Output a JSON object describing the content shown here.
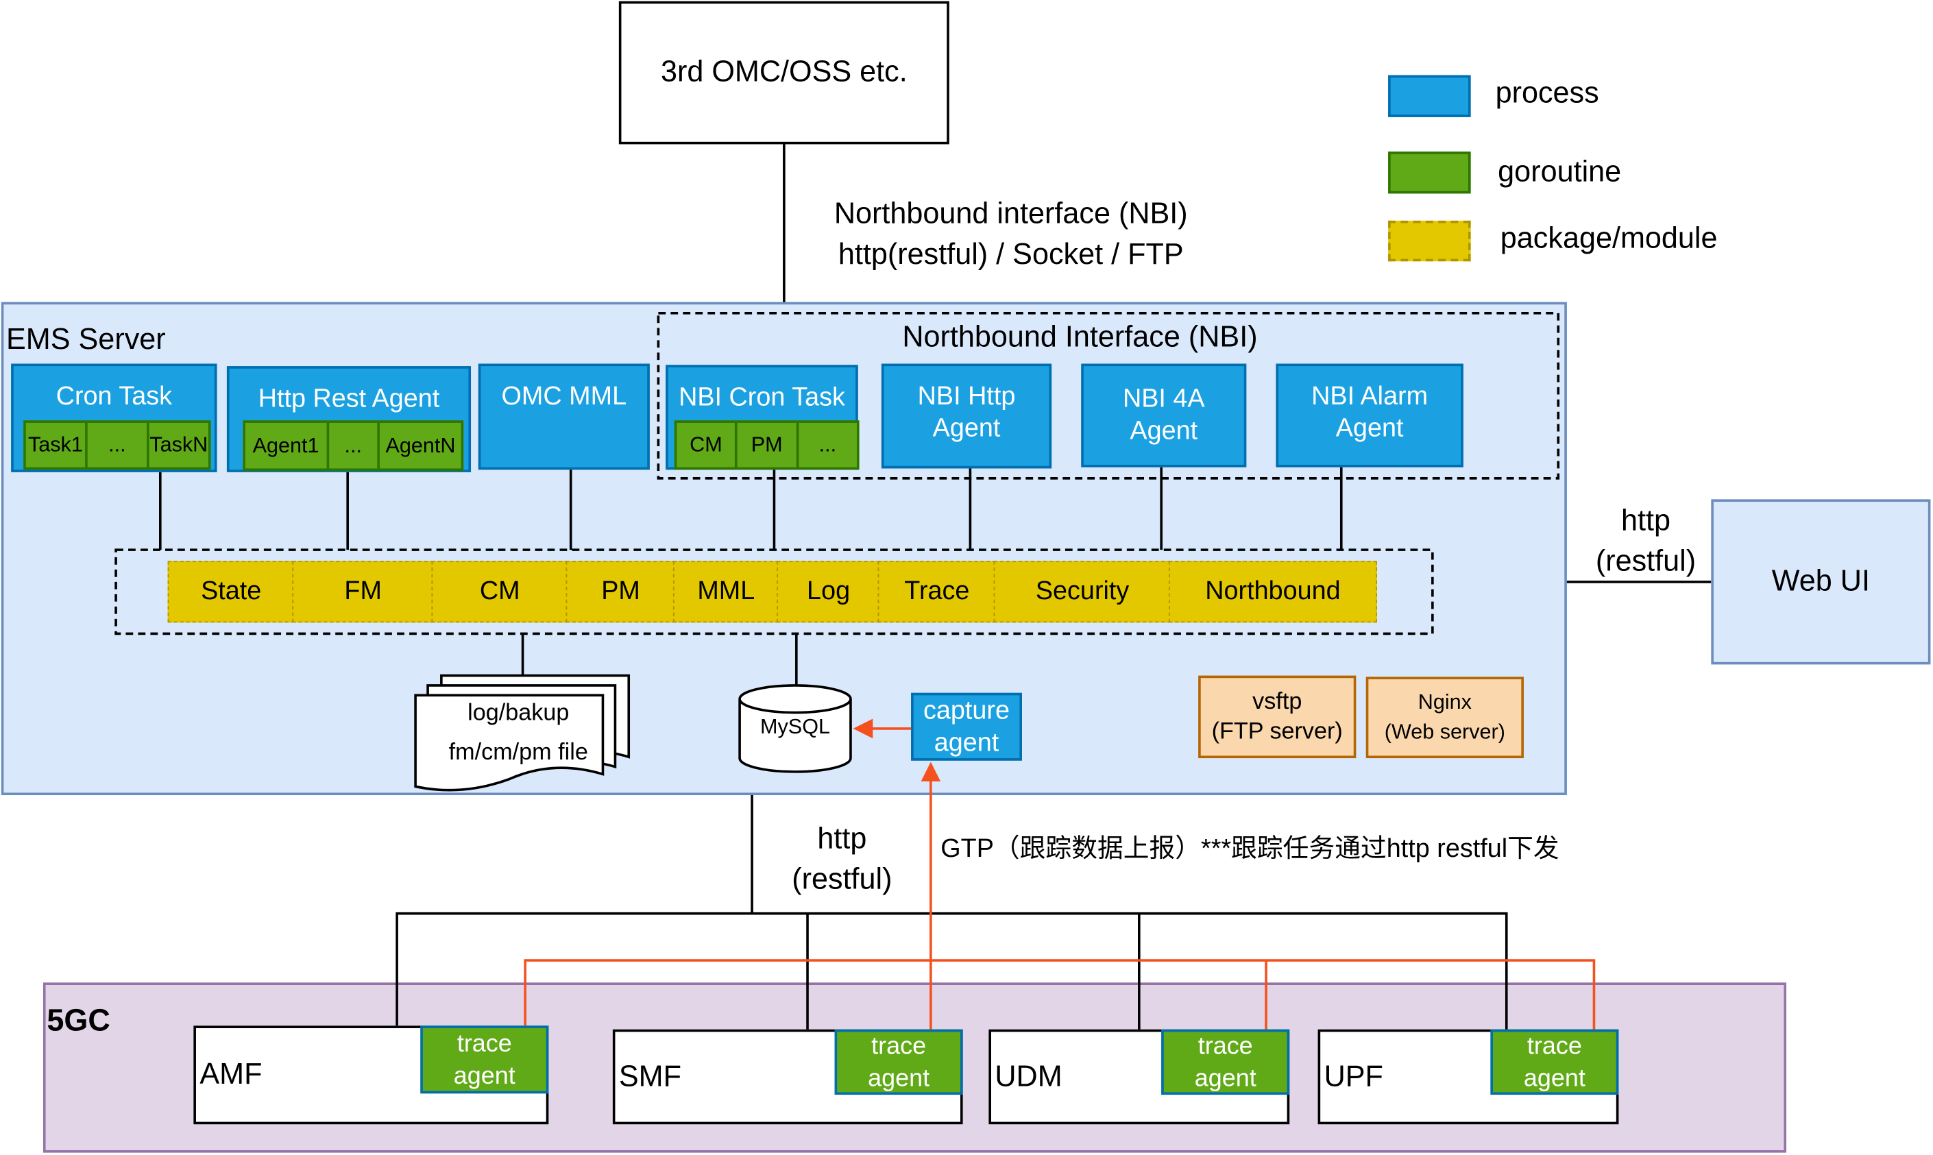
{
  "colors": {
    "process": "#1ba1e2",
    "goroutine": "#60a917",
    "package": "#e3c800",
    "ems_bg": "#dae8fc",
    "fivegc_bg": "#e1d5e7",
    "trace_arrow": "#f4511e",
    "server_box": "#fad7ac"
  },
  "omc": {
    "label": "3rd OMC/OSS etc."
  },
  "nbi_link": {
    "line1": "Northbound interface (NBI)",
    "line2": "http(restful) / Socket / FTP"
  },
  "legend": [
    {
      "label": "process"
    },
    {
      "label": "goroutine"
    },
    {
      "label": "package/module"
    }
  ],
  "ems": {
    "title": "EMS Server",
    "nbi_group": "Northbound Interface (NBI)",
    "cron": {
      "title": "Cron Task",
      "items": [
        "Task1",
        "...",
        "TaskN"
      ]
    },
    "http_rest": {
      "title": "Http Rest Agent",
      "items": [
        "Agent1",
        "...",
        "AgentN"
      ]
    },
    "omc_mml": {
      "title": "OMC MML"
    },
    "nbi_cron": {
      "title": "NBI Cron Task",
      "items": [
        "CM",
        "PM",
        "..."
      ]
    },
    "nbi_http": {
      "line1": "NBI Http",
      "line2": "Agent"
    },
    "nbi_4a": {
      "line1": "NBI 4A",
      "line2": "Agent"
    },
    "nbi_alarm": {
      "line1": "NBI Alarm",
      "line2": "Agent"
    },
    "modules": [
      "State",
      "FM",
      "CM",
      "PM",
      "MML",
      "Log",
      "Trace",
      "Security",
      "Northbound"
    ],
    "files": {
      "line1": "log/bakup",
      "line2": "fm/cm/pm file"
    },
    "mysql": "MySQL",
    "capture": {
      "line1": "capture",
      "line2": "agent"
    },
    "vsftp": {
      "line1": "vsftp",
      "line2": "(FTP server)"
    },
    "nginx": {
      "line1": "Nginx",
      "line2": "(Web server)"
    }
  },
  "webui": {
    "label": "Web UI",
    "link_line1": "http",
    "link_line2": "(restful)"
  },
  "south_link": {
    "line1": "http",
    "line2": "(restful)"
  },
  "gtp_note": "GTP（跟踪数据上报）***跟踪任务通过http restful下发",
  "fivegc": {
    "title": "5GC",
    "nfs": [
      {
        "name": "AMF"
      },
      {
        "name": "SMF"
      },
      {
        "name": "UDM"
      },
      {
        "name": "UPF"
      }
    ],
    "trace_line1": "trace",
    "trace_line2": "agent"
  }
}
